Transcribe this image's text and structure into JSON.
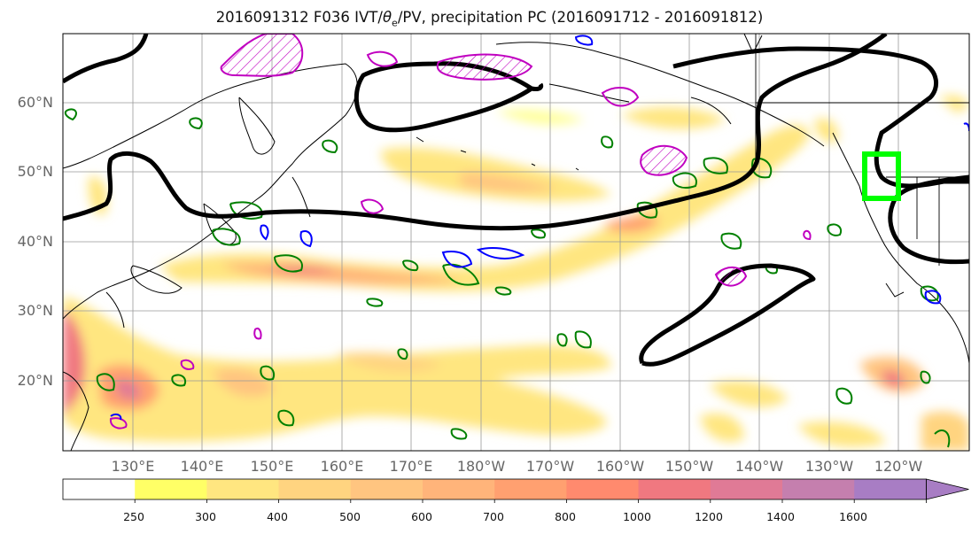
{
  "title_prefix": "2016091312 F036 IVT/",
  "title_theta": "θ",
  "title_sub": "e",
  "title_suffix": "/PV, precipitation PC (2016091712 - 2016091812)",
  "lat_labels": [
    "60°N",
    "50°N",
    "40°N",
    "30°N",
    "20°N"
  ],
  "lon_labels": [
    "130°E",
    "140°E",
    "150°E",
    "160°E",
    "170°E",
    "180°W",
    "170°W",
    "160°W",
    "150°W",
    "140°W",
    "130°W",
    "120°W"
  ],
  "colorbar": {
    "ticks": [
      "250",
      "300",
      "400",
      "500",
      "600",
      "700",
      "800",
      "1000",
      "1200",
      "1400",
      "1600"
    ],
    "colors": [
      "#ffffff",
      "#ffff66",
      "#ffe680",
      "#ffd480",
      "#ffc580",
      "#ffb47a",
      "#ffa070",
      "#ff8a6e",
      "#f07880",
      "#e07a96",
      "#c57fae",
      "#a87dc4"
    ]
  },
  "overlays": {
    "ivt_contour_color": "#000000",
    "theta_e_contour_color": "#008000",
    "pv_positive_color": "#c000c0",
    "pv_negative_color": "#0000ff",
    "target_box_color": "#00ff00"
  }
}
